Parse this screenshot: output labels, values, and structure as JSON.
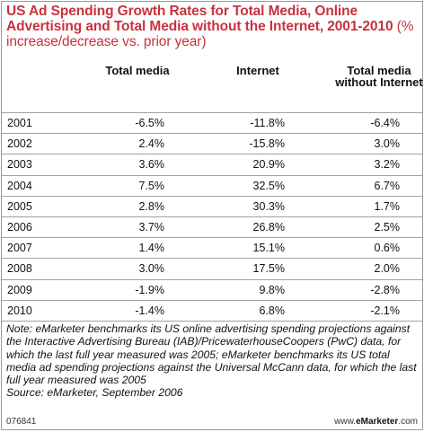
{
  "chart_data": {
    "type": "table",
    "title": "US Ad Spending Growth Rates for Total Media, Online Advertising and Total Media without the Internet, 2001-2010",
    "subtitle": "(% increase/decrease vs. prior year)",
    "columns": [
      "Total media",
      "Internet",
      "Total media without Internet"
    ],
    "rows": [
      {
        "year": "2001",
        "values": [
          "-6.5%",
          "-11.8%",
          "-6.4%"
        ]
      },
      {
        "year": "2002",
        "values": [
          "2.4%",
          "-15.8%",
          "3.0%"
        ]
      },
      {
        "year": "2003",
        "values": [
          "3.6%",
          "20.9%",
          "3.2%"
        ]
      },
      {
        "year": "2004",
        "values": [
          "7.5%",
          "32.5%",
          "6.7%"
        ]
      },
      {
        "year": "2005",
        "values": [
          "2.8%",
          "30.3%",
          "1.7%"
        ]
      },
      {
        "year": "2006",
        "values": [
          "3.7%",
          "26.8%",
          "2.5%"
        ]
      },
      {
        "year": "2007",
        "values": [
          "1.4%",
          "15.1%",
          "0.6%"
        ]
      },
      {
        "year": "2008",
        "values": [
          "3.0%",
          "17.5%",
          "2.0%"
        ]
      },
      {
        "year": "2009",
        "values": [
          "-1.9%",
          "9.8%",
          "-2.8%"
        ]
      },
      {
        "year": "2010",
        "values": [
          "-1.4%",
          "6.8%",
          "-2.1%"
        ]
      }
    ]
  },
  "note": "Note: eMarketer benchmarks its US online advertising spending projections against the Interactive Advertising Bureau (IAB)/PricewaterhouseCoopers (PwC) data, for which the last full year measured was 2005; eMarketer benchmarks its US total media ad spending projections against the Universal McCann data, for which the last full year measured was 2005",
  "source": "Source: eMarketer, September 2006",
  "footer": {
    "chart_id": "076841",
    "site_prefix": "www.",
    "site_brand": "eMarketer",
    "site_suffix": ".com"
  },
  "colors": {
    "title": "#c8323c",
    "rule": "#a0a0a0"
  }
}
